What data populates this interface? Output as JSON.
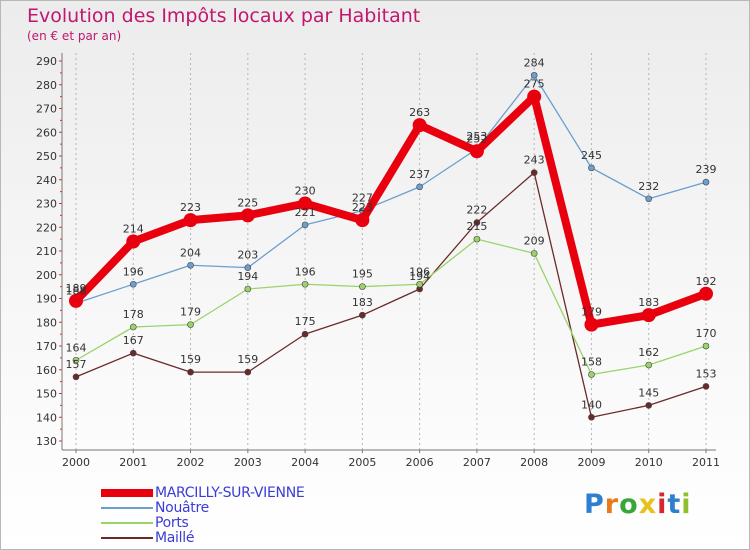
{
  "chart_data": {
    "type": "line",
    "title": "Evolution des Impôts locaux par Habitant",
    "subtitle": "(en € et par an)",
    "xlabel": "",
    "ylabel": "",
    "categories": [
      "2000",
      "2001",
      "2002",
      "2003",
      "2004",
      "2005",
      "2006",
      "2007",
      "2008",
      "2009",
      "2010",
      "2011"
    ],
    "ylim": [
      130,
      290
    ],
    "yticks": [
      130,
      140,
      150,
      160,
      170,
      180,
      190,
      200,
      210,
      220,
      230,
      240,
      250,
      260,
      270,
      280,
      290
    ],
    "grid": "vertical-dashed",
    "legend_position": "bottom-left",
    "series": [
      {
        "name": "MARCILLY-SUR-VIENNE",
        "color": "#e8000e",
        "values": [
          189,
          214,
          223,
          225,
          230,
          223,
          263,
          252,
          275,
          179,
          183,
          192
        ]
      },
      {
        "name": "Nouâtre",
        "color": "#6a9fce",
        "values": [
          188,
          196,
          204,
          203,
          221,
          227,
          237,
          253,
          284,
          245,
          232,
          239
        ]
      },
      {
        "name": "Ports",
        "color": "#9ad36a",
        "values": [
          164,
          178,
          179,
          194,
          196,
          195,
          196,
          215,
          209,
          158,
          162,
          170
        ]
      },
      {
        "name": "Maillé",
        "color": "#6b2a2a",
        "values": [
          157,
          167,
          159,
          159,
          175,
          183,
          194,
          222,
          243,
          140,
          145,
          153
        ]
      }
    ]
  },
  "logo": {
    "letters": [
      "P",
      "r",
      "o",
      "x",
      "i",
      "t",
      "i"
    ]
  }
}
